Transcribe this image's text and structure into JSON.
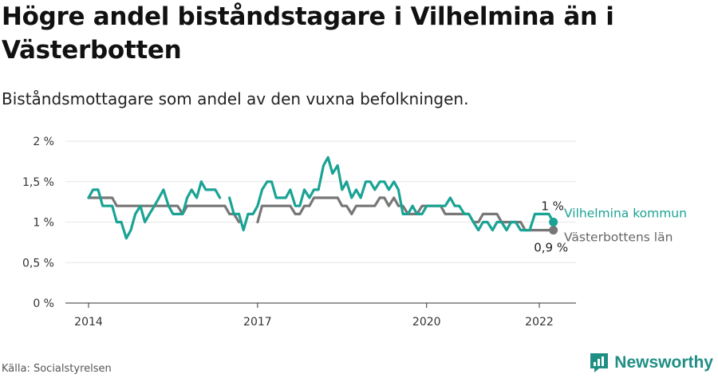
{
  "title": "Högre andel biståndstagare i Vilhelmina än i Västerbotten",
  "subtitle": "Biståndsmottagare som andel av den vuxna befolkningen.",
  "source": "Källa: Socialstyrelsen",
  "brand": "Newsworthy",
  "colors": {
    "vilhelmina": "#1aa394",
    "vasterbotten": "#777777",
    "brand": "#1f8f84"
  },
  "chart_data": {
    "type": "line",
    "ylim": [
      0,
      2
    ],
    "yticks": [
      {
        "value": 0,
        "label": "0 %"
      },
      {
        "value": 0.5,
        "label": "0,5 %"
      },
      {
        "value": 1,
        "label": "1 %"
      },
      {
        "value": 1.5,
        "label": "1,5 %"
      },
      {
        "value": 2,
        "label": "2 %"
      }
    ],
    "xticks": [
      {
        "value": 2014.0,
        "label": "2014"
      },
      {
        "value": 2017.0,
        "label": "2017"
      },
      {
        "value": 2020.0,
        "label": "2020"
      },
      {
        "value": 2022.0,
        "label": "2022"
      }
    ],
    "grid": true,
    "series": [
      {
        "name": "Vilhelmina kommun",
        "end_label": "1 %",
        "points": [
          [
            2014.0,
            1.3
          ],
          [
            2014.08,
            1.4
          ],
          [
            2014.17,
            1.4
          ],
          [
            2014.25,
            1.2
          ],
          [
            2014.33,
            1.2
          ],
          [
            2014.42,
            1.2
          ],
          [
            2014.5,
            1.0
          ],
          [
            2014.58,
            1.0
          ],
          [
            2014.67,
            0.8
          ],
          [
            2014.75,
            0.9
          ],
          [
            2014.83,
            1.1
          ],
          [
            2014.92,
            1.2
          ],
          [
            2015.0,
            1.0
          ],
          [
            2015.08,
            1.1
          ],
          [
            2015.17,
            1.2
          ],
          [
            2015.25,
            1.3
          ],
          [
            2015.33,
            1.4
          ],
          [
            2015.42,
            1.2
          ],
          [
            2015.5,
            1.1
          ],
          [
            2015.58,
            1.1
          ],
          [
            2015.67,
            1.1
          ],
          [
            2015.75,
            1.3
          ],
          [
            2015.83,
            1.4
          ],
          [
            2015.92,
            1.3
          ],
          [
            2016.0,
            1.5
          ],
          [
            2016.08,
            1.4
          ],
          [
            2016.17,
            1.4
          ],
          [
            2016.25,
            1.4
          ],
          [
            2016.33,
            1.3
          ],
          null,
          [
            2016.5,
            1.3
          ],
          [
            2016.58,
            1.1
          ],
          [
            2016.67,
            1.1
          ],
          [
            2016.75,
            0.9
          ],
          [
            2016.83,
            1.1
          ],
          [
            2016.92,
            1.1
          ],
          [
            2017.0,
            1.2
          ],
          [
            2017.08,
            1.4
          ],
          [
            2017.17,
            1.5
          ],
          [
            2017.25,
            1.5
          ],
          [
            2017.33,
            1.3
          ],
          [
            2017.42,
            1.3
          ],
          [
            2017.5,
            1.3
          ],
          [
            2017.58,
            1.4
          ],
          [
            2017.67,
            1.2
          ],
          [
            2017.75,
            1.2
          ],
          [
            2017.83,
            1.4
          ],
          [
            2017.92,
            1.3
          ],
          [
            2018.0,
            1.4
          ],
          [
            2018.08,
            1.4
          ],
          [
            2018.17,
            1.7
          ],
          [
            2018.25,
            1.8
          ],
          [
            2018.33,
            1.6
          ],
          [
            2018.42,
            1.7
          ],
          [
            2018.5,
            1.4
          ],
          [
            2018.58,
            1.5
          ],
          [
            2018.67,
            1.3
          ],
          [
            2018.75,
            1.4
          ],
          [
            2018.83,
            1.3
          ],
          [
            2018.92,
            1.5
          ],
          [
            2019.0,
            1.5
          ],
          [
            2019.08,
            1.4
          ],
          [
            2019.17,
            1.5
          ],
          [
            2019.25,
            1.5
          ],
          [
            2019.33,
            1.4
          ],
          [
            2019.42,
            1.5
          ],
          [
            2019.5,
            1.4
          ],
          [
            2019.58,
            1.1
          ],
          [
            2019.67,
            1.1
          ],
          [
            2019.75,
            1.2
          ],
          [
            2019.83,
            1.1
          ],
          [
            2019.92,
            1.1
          ],
          [
            2020.0,
            1.2
          ],
          [
            2020.08,
            1.2
          ],
          [
            2020.17,
            1.2
          ],
          [
            2020.25,
            1.2
          ],
          [
            2020.33,
            1.2
          ],
          [
            2020.42,
            1.3
          ],
          [
            2020.5,
            1.2
          ],
          [
            2020.58,
            1.2
          ],
          [
            2020.67,
            1.1
          ],
          [
            2020.75,
            1.1
          ],
          [
            2020.83,
            1.0
          ],
          [
            2020.92,
            0.9
          ],
          [
            2021.0,
            1.0
          ],
          [
            2021.08,
            1.0
          ],
          [
            2021.17,
            0.9
          ],
          [
            2021.25,
            1.0
          ],
          [
            2021.33,
            1.0
          ],
          [
            2021.42,
            0.9
          ],
          [
            2021.5,
            1.0
          ],
          [
            2021.58,
            1.0
          ],
          [
            2021.67,
            0.9
          ],
          [
            2021.75,
            0.9
          ],
          [
            2021.83,
            0.9
          ],
          [
            2021.92,
            1.1
          ],
          [
            2022.0,
            1.1
          ],
          [
            2022.08,
            1.1
          ],
          [
            2022.17,
            1.1
          ],
          [
            2022.25,
            1.0
          ]
        ]
      },
      {
        "name": "Västerbottens län",
        "end_label": "0,9 %",
        "points": [
          [
            2014.0,
            1.3
          ],
          [
            2014.08,
            1.3
          ],
          [
            2014.17,
            1.3
          ],
          [
            2014.25,
            1.3
          ],
          [
            2014.33,
            1.3
          ],
          [
            2014.42,
            1.3
          ],
          [
            2014.5,
            1.2
          ],
          [
            2014.58,
            1.2
          ],
          [
            2014.67,
            1.2
          ],
          [
            2014.75,
            1.2
          ],
          [
            2014.83,
            1.2
          ],
          [
            2014.92,
            1.2
          ],
          [
            2015.0,
            1.2
          ],
          [
            2015.08,
            1.2
          ],
          [
            2015.17,
            1.2
          ],
          [
            2015.25,
            1.2
          ],
          [
            2015.33,
            1.2
          ],
          [
            2015.42,
            1.2
          ],
          [
            2015.5,
            1.2
          ],
          [
            2015.58,
            1.2
          ],
          [
            2015.67,
            1.1
          ],
          [
            2015.75,
            1.2
          ],
          [
            2015.83,
            1.2
          ],
          [
            2015.92,
            1.2
          ],
          [
            2016.0,
            1.2
          ],
          [
            2016.08,
            1.2
          ],
          [
            2016.17,
            1.2
          ],
          [
            2016.25,
            1.2
          ],
          [
            2016.33,
            1.2
          ],
          [
            2016.42,
            1.2
          ],
          [
            2016.5,
            1.1
          ],
          [
            2016.58,
            1.1
          ],
          [
            2016.67,
            1.0
          ],
          null,
          [
            2017.0,
            1.0
          ],
          [
            2017.08,
            1.2
          ],
          [
            2017.17,
            1.2
          ],
          [
            2017.25,
            1.2
          ],
          [
            2017.33,
            1.2
          ],
          [
            2017.42,
            1.2
          ],
          [
            2017.5,
            1.2
          ],
          [
            2017.58,
            1.2
          ],
          [
            2017.67,
            1.1
          ],
          [
            2017.75,
            1.1
          ],
          [
            2017.83,
            1.2
          ],
          [
            2017.92,
            1.2
          ],
          [
            2018.0,
            1.3
          ],
          [
            2018.08,
            1.3
          ],
          [
            2018.17,
            1.3
          ],
          [
            2018.25,
            1.3
          ],
          [
            2018.33,
            1.3
          ],
          [
            2018.42,
            1.3
          ],
          [
            2018.5,
            1.2
          ],
          [
            2018.58,
            1.2
          ],
          [
            2018.67,
            1.1
          ],
          [
            2018.75,
            1.2
          ],
          [
            2018.83,
            1.2
          ],
          [
            2018.92,
            1.2
          ],
          [
            2019.0,
            1.2
          ],
          [
            2019.08,
            1.2
          ],
          [
            2019.17,
            1.3
          ],
          [
            2019.25,
            1.3
          ],
          [
            2019.33,
            1.2
          ],
          [
            2019.42,
            1.3
          ],
          [
            2019.5,
            1.2
          ],
          [
            2019.58,
            1.2
          ],
          [
            2019.67,
            1.1
          ],
          [
            2019.75,
            1.1
          ],
          [
            2019.83,
            1.1
          ],
          [
            2019.92,
            1.2
          ],
          [
            2020.0,
            1.2
          ],
          [
            2020.08,
            1.2
          ],
          [
            2020.17,
            1.2
          ],
          [
            2020.25,
            1.2
          ],
          [
            2020.33,
            1.1
          ],
          [
            2020.42,
            1.1
          ],
          [
            2020.5,
            1.1
          ],
          [
            2020.58,
            1.1
          ],
          [
            2020.67,
            1.1
          ],
          [
            2020.75,
            1.1
          ],
          [
            2020.83,
            1.0
          ],
          [
            2020.92,
            1.0
          ],
          [
            2021.0,
            1.1
          ],
          [
            2021.08,
            1.1
          ],
          [
            2021.17,
            1.1
          ],
          [
            2021.25,
            1.1
          ],
          [
            2021.33,
            1.0
          ],
          [
            2021.42,
            1.0
          ],
          [
            2021.5,
            1.0
          ],
          [
            2021.58,
            1.0
          ],
          [
            2021.67,
            1.0
          ],
          [
            2021.75,
            0.9
          ],
          [
            2021.83,
            0.9
          ],
          [
            2021.92,
            0.9
          ],
          [
            2022.0,
            0.9
          ],
          [
            2022.08,
            0.9
          ],
          [
            2022.17,
            0.9
          ],
          [
            2022.25,
            0.9
          ]
        ]
      }
    ]
  }
}
